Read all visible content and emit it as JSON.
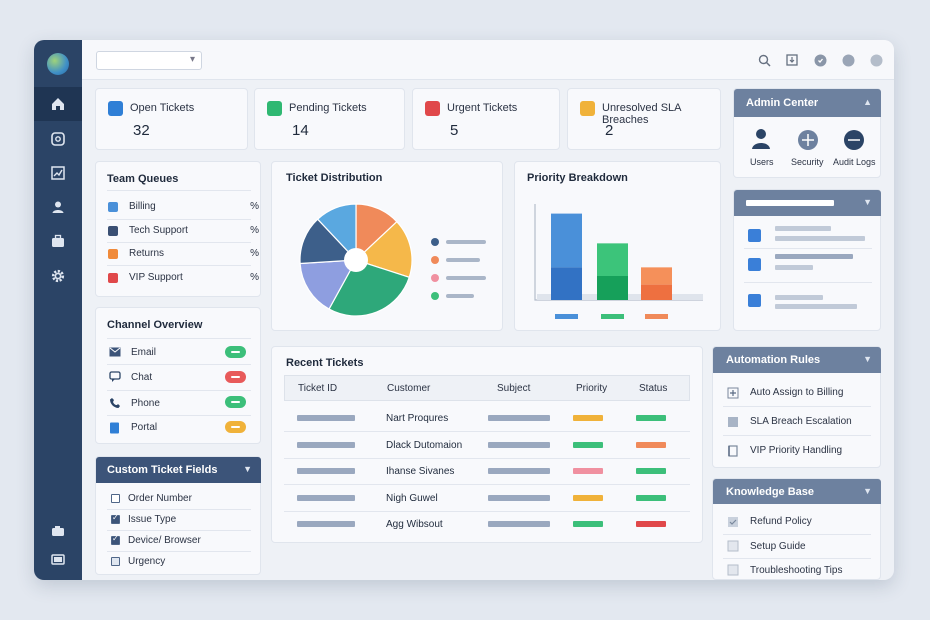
{
  "stats": [
    {
      "label": "Open Tickets",
      "value": "32",
      "color": "#2f7fd6"
    },
    {
      "label": "Pending Tickets",
      "value": "14",
      "color": "#2fb872"
    },
    {
      "label": "Urgent Tickets",
      "value": "5",
      "color": "#e0484a"
    },
    {
      "label": "Unresolved SLA Breaches",
      "value": "2",
      "color": "#f0b23a"
    }
  ],
  "team_queues": {
    "title": "Team Queues",
    "items": [
      {
        "label": "Billing",
        "pct": "%",
        "color": "#4a90d9"
      },
      {
        "label": "Tech Support",
        "pct": "%",
        "color": "#3a4f73"
      },
      {
        "label": "Returns",
        "pct": "%",
        "color": "#f08a3a"
      },
      {
        "label": "VIP Support",
        "pct": "%",
        "color": "#e0484a"
      }
    ]
  },
  "channel_overview": {
    "title": "Channel Overview",
    "items": [
      {
        "label": "Email",
        "pill_color": "#3cbf7a",
        "icon": "mail-icon"
      },
      {
        "label": "Chat",
        "pill_color": "#e85a5a",
        "icon": "chat-icon"
      },
      {
        "label": "Phone",
        "pill_color": "#3cbf7a",
        "icon": "phone-icon"
      },
      {
        "label": "Portal",
        "pill_color": "#f0b23a",
        "icon": "portal-icon"
      }
    ]
  },
  "custom_fields": {
    "title": "Custom Ticket Fields",
    "items": [
      {
        "label": "Order Number",
        "checked": false
      },
      {
        "label": "Issue Type",
        "checked": true
      },
      {
        "label": "Device/ Browser",
        "checked": true
      },
      {
        "label": "Urgency",
        "checked": false
      }
    ]
  },
  "distribution": {
    "title": "Ticket Distribution",
    "legend_colors": [
      "#3d5f8a",
      "#f08a5a",
      "#f090a0",
      "#3cbf7a"
    ]
  },
  "priority": {
    "title": "Priority Breakdown",
    "legend_colors": [
      "#4a90d9",
      "#3cbf7a",
      "#f08a5a"
    ]
  },
  "recent": {
    "title": "Recent Tickets",
    "columns": [
      "Ticket ID",
      "Customer",
      "Subject",
      "Priority",
      "Status"
    ],
    "rows": [
      {
        "customer": "Nart Proqures",
        "priority_color": "#f0b23a",
        "status_color": "#3cbf7a"
      },
      {
        "customer": "Dlack Dutomaion",
        "priority_color": "#3cbf7a",
        "status_color": "#f08a5a"
      },
      {
        "customer": "Ihanse Sivanes",
        "priority_color": "#f090a0",
        "status_color": "#3cbf7a"
      },
      {
        "customer": "Nigh Guwel",
        "priority_color": "#f0b23a",
        "status_color": "#3cbf7a"
      },
      {
        "customer": "Agg Wibsout",
        "priority_color": "#3cbf7a",
        "status_color": "#e0484a"
      }
    ]
  },
  "admin": {
    "title": "Admin Center",
    "items": [
      {
        "label": "Users"
      },
      {
        "label": "Security"
      },
      {
        "label": "Audit Logs"
      }
    ]
  },
  "automation": {
    "title": "Automation Rules",
    "items": [
      {
        "label": "Auto Assign to Billing"
      },
      {
        "label": "SLA Breach Escalation"
      },
      {
        "label": "VIP Priority Handling"
      }
    ]
  },
  "kb": {
    "title": "Knowledge Base",
    "items": [
      {
        "label": "Refund Policy"
      },
      {
        "label": "Setup Guide"
      },
      {
        "label": "Troubleshooting Tips"
      }
    ]
  },
  "chart_data": [
    {
      "type": "pie",
      "title": "Ticket Distribution",
      "slices": [
        {
          "value": 13,
          "color": "#f08a5a"
        },
        {
          "value": 17,
          "color": "#f5b84a"
        },
        {
          "value": 28,
          "color": "#2ea87a"
        },
        {
          "value": 16,
          "color": "#8e9ee0"
        },
        {
          "value": 14,
          "color": "#3d5f8a"
        },
        {
          "value": 12,
          "color": "#5aa8e0"
        }
      ]
    },
    {
      "type": "bar",
      "title": "Priority Breakdown",
      "stacked": true,
      "ylim": [
        0,
        100
      ],
      "bars": [
        {
          "color_top": "#4a90d9",
          "color_bottom": "#3272c4",
          "total": 90,
          "bottom": 34
        },
        {
          "color_top": "#3cc47a",
          "color_bottom": "#16a05a",
          "total": 59,
          "bottom": 25
        },
        {
          "color_top": "#f5905a",
          "color_bottom": "#ee7040",
          "total": 34,
          "bottom": 16
        }
      ]
    }
  ]
}
